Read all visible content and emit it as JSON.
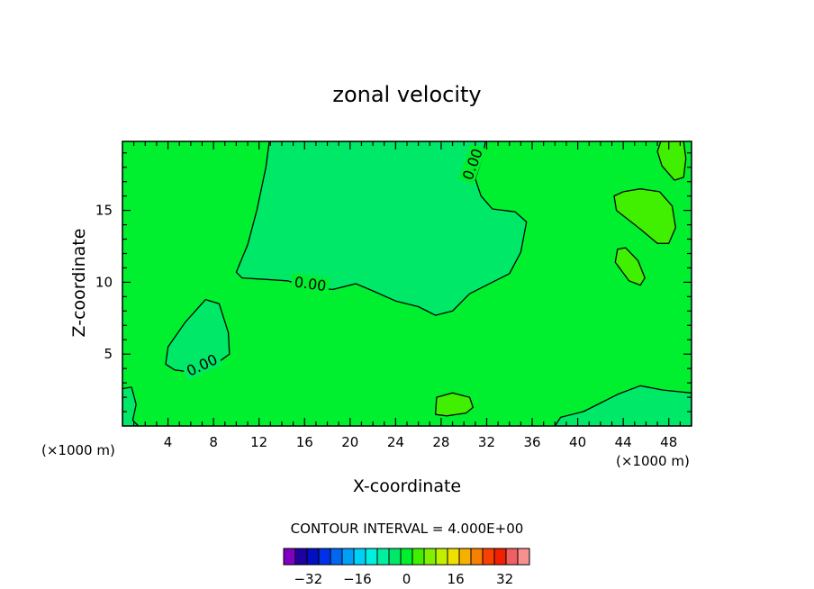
{
  "chart_data": {
    "type": "contour",
    "title": "zonal velocity",
    "xlabel": "X-coordinate",
    "ylabel": "Z-coordinate",
    "x_unit_left": "(×1000 m)",
    "x_unit_right": "(×1000 m)",
    "xlim": [
      0,
      50
    ],
    "ylim": [
      0,
      19.8
    ],
    "x_ticks": [
      4,
      8,
      12,
      16,
      20,
      24,
      28,
      32,
      36,
      40,
      44,
      48
    ],
    "y_ticks": [
      5,
      10,
      15
    ],
    "contour_interval_text": "CONTOUR INTERVAL =  4.000E+00",
    "contour_label": "0.00",
    "background_value_color": "#00f030",
    "colorbar": {
      "tick_labels": [
        "-32",
        "-16",
        "0",
        "16",
        "32"
      ],
      "tick_values": [
        -32,
        -16,
        0,
        16,
        32
      ],
      "levels": [
        -40,
        40
      ],
      "colors": [
        "#8000c0",
        "#2000a0",
        "#0010c0",
        "#0030e8",
        "#0068f0",
        "#00a0f8",
        "#00d0f8",
        "#00f0e0",
        "#00f0a0",
        "#00e868",
        "#00f030",
        "#40f000",
        "#80f000",
        "#c0f000",
        "#f0e000",
        "#f8b000",
        "#f88000",
        "#f84000",
        "#f02000",
        "#f06060",
        "#f89090"
      ]
    },
    "regions": [
      {
        "name": "upper-negative-plume",
        "level": -4,
        "color": "#00e868",
        "label": "0.00",
        "outline": [
          [
            12.9,
            19.8
          ],
          [
            12.6,
            18
          ],
          [
            11.8,
            15
          ],
          [
            11,
            12.6
          ],
          [
            10,
            10.7
          ],
          [
            10.5,
            10.3
          ],
          [
            12.5,
            10.2
          ],
          [
            14.5,
            10.1
          ],
          [
            16.5,
            9.6
          ],
          [
            18.5,
            9.5
          ],
          [
            20.5,
            9.9
          ],
          [
            22,
            9.4
          ],
          [
            24,
            8.7
          ],
          [
            26,
            8.3
          ],
          [
            27.5,
            7.7
          ],
          [
            29,
            8
          ],
          [
            30.5,
            9.2
          ],
          [
            32,
            9.8
          ],
          [
            34,
            10.6
          ],
          [
            35,
            12.1
          ],
          [
            35.5,
            14.2
          ],
          [
            34.5,
            14.9
          ],
          [
            32.5,
            15.1
          ],
          [
            31.5,
            16
          ],
          [
            31,
            17.2
          ],
          [
            31.6,
            18.6
          ],
          [
            31.9,
            19.8
          ]
        ]
      },
      {
        "name": "left-negative-blob",
        "level": -4,
        "color": "#00e868",
        "label": "0.00",
        "outline": [
          [
            3.8,
            4.3
          ],
          [
            4,
            5.5
          ],
          [
            5.5,
            7.2
          ],
          [
            7.3,
            8.8
          ],
          [
            8.5,
            8.5
          ],
          [
            9.3,
            6.5
          ],
          [
            9.4,
            5
          ],
          [
            8,
            4.2
          ],
          [
            6.5,
            3.7
          ],
          [
            4.6,
            3.9
          ]
        ]
      },
      {
        "name": "upper-right-positive-blob",
        "level": 4,
        "color": "#40f000",
        "outline": [
          [
            43.2,
            16
          ],
          [
            43.4,
            15
          ],
          [
            45.5,
            13.7
          ],
          [
            47,
            12.7
          ],
          [
            48,
            12.7
          ],
          [
            48.6,
            13.8
          ],
          [
            48.3,
            15.3
          ],
          [
            47.2,
            16.3
          ],
          [
            45.5,
            16.5
          ],
          [
            44,
            16.3
          ]
        ]
      },
      {
        "name": "right-middle-positive-blob",
        "level": 4,
        "color": "#40f000",
        "outline": [
          [
            43.5,
            12.3
          ],
          [
            43.3,
            11.4
          ],
          [
            44.5,
            10.1
          ],
          [
            45.5,
            9.8
          ],
          [
            45.9,
            10.3
          ],
          [
            45.3,
            11.5
          ],
          [
            44.2,
            12.4
          ]
        ]
      },
      {
        "name": "top-right-positive-patch",
        "level": 4,
        "color": "#40f000",
        "outline": [
          [
            47,
            19.1
          ],
          [
            47.4,
            18.1
          ],
          [
            48.5,
            17.1
          ],
          [
            49.3,
            17.3
          ],
          [
            49.5,
            18.6
          ],
          [
            49.3,
            19.8
          ],
          [
            47.3,
            19.8
          ]
        ]
      },
      {
        "name": "bottom-right-negative-band",
        "level": -4,
        "color": "#00e868",
        "outline": [
          [
            40.5,
            1
          ],
          [
            42,
            1.6
          ],
          [
            43.5,
            2.2
          ],
          [
            45.5,
            2.8
          ],
          [
            47.5,
            2.5
          ],
          [
            50,
            2.3
          ],
          [
            50,
            0
          ],
          [
            38,
            0
          ],
          [
            38.5,
            0.6
          ]
        ]
      },
      {
        "name": "bottom-center-positive-patch",
        "level": 4,
        "color": "#40f000",
        "outline": [
          [
            27.5,
            0.8
          ],
          [
            27.6,
            2
          ],
          [
            29,
            2.3
          ],
          [
            30.5,
            2
          ],
          [
            30.8,
            1.3
          ],
          [
            30.2,
            0.9
          ],
          [
            28.5,
            0.7
          ]
        ]
      },
      {
        "name": "bottom-left-negative-patch",
        "level": -4,
        "color": "#00e868",
        "outline": [
          [
            0,
            2.6
          ],
          [
            0.8,
            2.7
          ],
          [
            1.2,
            1.5
          ],
          [
            0.9,
            0.4
          ],
          [
            1.4,
            0
          ],
          [
            0,
            0
          ]
        ]
      }
    ]
  }
}
